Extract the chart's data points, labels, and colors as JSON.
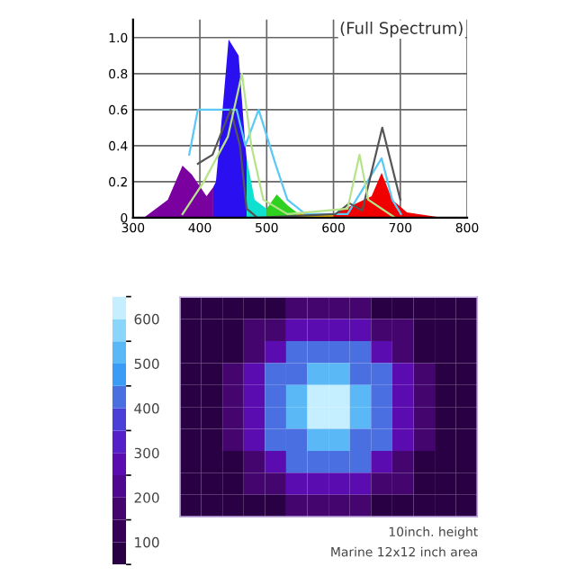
{
  "chart_data": [
    {
      "type": "area",
      "title": "(Full Spectrum)",
      "xlim": [
        300,
        800
      ],
      "ylim": [
        0,
        1.1
      ],
      "xticks": [
        300,
        400,
        500,
        600,
        700,
        800
      ],
      "yticks": [
        0,
        0.2,
        0.4,
        0.6,
        0.8,
        {
          "value": 1.0,
          "label": "1.0"
        }
      ],
      "grid": true,
      "series": [
        {
          "type": "area",
          "color": "#7a00a0",
          "x": [
            316,
            352,
            374,
            388,
            410,
            420
          ],
          "values": [
            0,
            0.1,
            0.29,
            0.24,
            0.12,
            0.17
          ]
        },
        {
          "type": "area",
          "color": "#2a10f0",
          "x": [
            420,
            424,
            434,
            443,
            458,
            468,
            470
          ],
          "values": [
            0.17,
            0.2,
            0.6,
            0.99,
            0.9,
            0.4,
            0.33
          ]
        },
        {
          "type": "area",
          "color": "#10e0d0",
          "x": [
            470,
            482,
            500
          ],
          "values": [
            0.33,
            0.1,
            0.05
          ]
        },
        {
          "type": "area",
          "color": "#30d020",
          "x": [
            500,
            515,
            531,
            545
          ],
          "values": [
            0.05,
            0.13,
            0.07,
            0.03
          ]
        },
        {
          "type": "area",
          "color": "#e8c000",
          "x": [
            545,
            558,
            600
          ],
          "values": [
            0.03,
            0.02,
            0.02
          ]
        },
        {
          "type": "area",
          "color": "#f00000",
          "x": [
            600,
            657,
            672,
            688,
            710,
            764
          ],
          "values": [
            0.02,
            0.12,
            0.25,
            0.1,
            0.03,
            0
          ]
        },
        {
          "type": "line",
          "color": "#5bc8f5",
          "x": [
            384,
            397,
            455,
            468,
            488,
            513,
            531,
            558,
            621,
            672,
            688,
            701
          ],
          "values": [
            0.35,
            0.6,
            0.6,
            0.4,
            0.6,
            0.3,
            0.1,
            0.02,
            0.02,
            0.33,
            0.1,
            0.02
          ]
        },
        {
          "type": "line",
          "color": "#555555",
          "x": [
            397,
            419,
            446,
            460,
            470,
            486,
            603,
            624,
            643,
            673,
            700
          ],
          "values": [
            0.3,
            0.35,
            0.6,
            0.4,
            0.05,
            0.0,
            0.02,
            0.08,
            0.04,
            0.5,
            0.1
          ]
        },
        {
          "type": "line",
          "color": "#b5e38a",
          "x": [
            374,
            406,
            442,
            463,
            477,
            495,
            531,
            621,
            639,
            652,
            692
          ],
          "values": [
            0.02,
            0.2,
            0.45,
            0.8,
            0.4,
            0.1,
            0.02,
            0.05,
            0.35,
            0.1,
            0.0
          ]
        }
      ]
    },
    {
      "type": "heatmap",
      "clabel": null,
      "categories": [
        null,
        null,
        null,
        null,
        null,
        null,
        null,
        null,
        null,
        null,
        null,
        null,
        null,
        null
      ],
      "y_categories": [
        null,
        null,
        null,
        null,
        null,
        null,
        null,
        null,
        null,
        null
      ],
      "clim": [
        50,
        650
      ],
      "cticks": [
        100,
        200,
        300,
        400,
        500,
        600
      ],
      "annotations": [
        "10inch. height",
        "Marine 12x12 inch area"
      ],
      "cells": [
        [
          70,
          70,
          70,
          70,
          70,
          170,
          170,
          170,
          170,
          70,
          70,
          70,
          70,
          70
        ],
        [
          70,
          70,
          70,
          170,
          170,
          260,
          260,
          260,
          260,
          170,
          170,
          70,
          70,
          70
        ],
        [
          70,
          70,
          70,
          170,
          260,
          430,
          430,
          430,
          430,
          260,
          170,
          70,
          70,
          70
        ],
        [
          70,
          70,
          170,
          260,
          430,
          430,
          520,
          520,
          430,
          430,
          260,
          170,
          70,
          70
        ],
        [
          70,
          70,
          170,
          260,
          430,
          520,
          600,
          600,
          520,
          430,
          260,
          170,
          70,
          70
        ],
        [
          70,
          70,
          170,
          260,
          430,
          520,
          600,
          600,
          520,
          430,
          260,
          170,
          70,
          70
        ],
        [
          70,
          70,
          170,
          260,
          430,
          430,
          520,
          520,
          430,
          430,
          260,
          170,
          70,
          70
        ],
        [
          70,
          70,
          70,
          170,
          260,
          430,
          430,
          430,
          430,
          260,
          170,
          70,
          70,
          70
        ],
        [
          70,
          70,
          70,
          170,
          170,
          260,
          260,
          260,
          260,
          170,
          170,
          70,
          70,
          70
        ],
        [
          70,
          70,
          70,
          70,
          70,
          170,
          170,
          170,
          170,
          70,
          70,
          70,
          70,
          70
        ]
      ]
    }
  ]
}
